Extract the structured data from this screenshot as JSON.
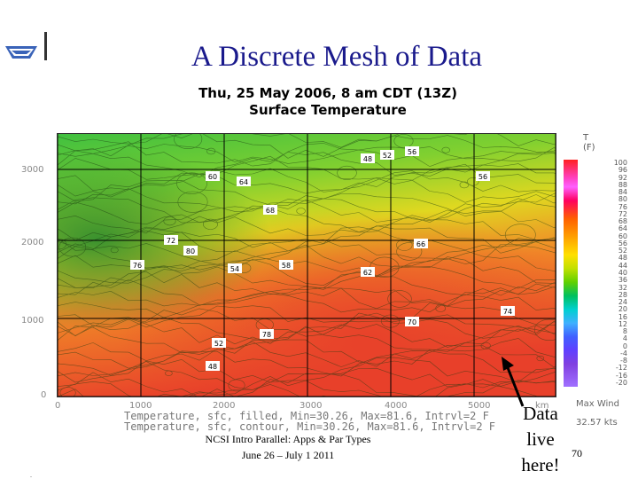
{
  "slide": {
    "title": "A Discrete Mesh of Data",
    "footer_line1": "NCSI Intro Parallel: Apps & Par Types",
    "footer_line2": "June 26 – July 1 2011",
    "page_number": "70",
    "callout": [
      "Data",
      "live",
      "here!"
    ]
  },
  "map": {
    "title_line1": "Thu, 25 May 2006, 8 am CDT (13Z)",
    "title_line2": "Surface Temperature",
    "y_ticks": [
      "3000",
      "2000",
      "1000",
      "0"
    ],
    "x_ticks": [
      "0",
      "1000",
      "2000",
      "3000",
      "4000",
      "5000"
    ],
    "x_unit_fragment": "km",
    "caption_line1": "Temperature, sfc, filled, Min=30.26, Max=81.6, Intrvl=2 F",
    "caption_line2": "Temperature, sfc, contour, Min=30.26, Max=81.6, Intrvl=2 F",
    "contour_labels": [
      "48",
      "52",
      "56",
      "60",
      "64",
      "68",
      "72",
      "76",
      "80",
      "54",
      "58",
      "62",
      "66",
      "70",
      "74",
      "78"
    ]
  },
  "legend": {
    "heading_line1": "T",
    "heading_line2": "(F)",
    "scale_labels": [
      "100",
      "96",
      "92",
      "88",
      "84",
      "80",
      "76",
      "72",
      "68",
      "64",
      "60",
      "56",
      "52",
      "48",
      "44",
      "40",
      "36",
      "32",
      "28",
      "24",
      "20",
      "16",
      "12",
      "8",
      "4",
      "0",
      "-4",
      "-8",
      "-12",
      "-16",
      "-20"
    ],
    "wind_label": "Max Wind",
    "wind_value": "32.57 kts"
  },
  "colors": {
    "title": "#1a1a8c",
    "warm": "#e8502a",
    "mid": "#f0d020",
    "cool": "#40c040"
  }
}
